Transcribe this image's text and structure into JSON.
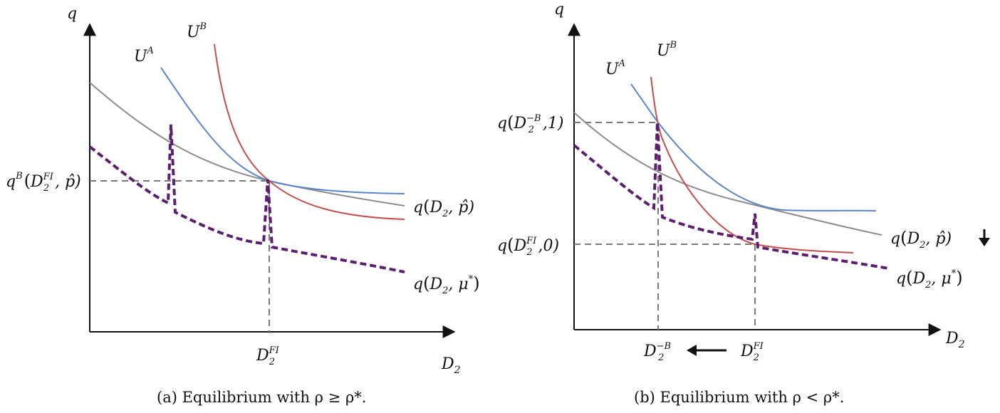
{
  "panel_a": {
    "axis_y": "q",
    "axis_x_main": "D",
    "axis_x_sub": "2",
    "ua_main": "U",
    "ua_sup": "A",
    "ub_main": "U",
    "ub_sup": "B",
    "ylabel_q_main": "q",
    "ylabel_q_sup": "B",
    "ylabel_open": "(",
    "ylabel_d": "D",
    "ylabel_d_sub": "2",
    "ylabel_d_sup": "FI",
    "ylabel_rest": ", p̂)",
    "curve1_q": "q",
    "curve1_open": "(",
    "curve1_d": "D",
    "curve1_sub": "2",
    "curve1_rest": ", p̂)",
    "curve2_q": "q",
    "curve2_open": "(",
    "curve2_d": "D",
    "curve2_sub": "2",
    "curve2_rest": ", μ",
    "curve2_sup": "*",
    "curve2_close": ")",
    "xtick_d": "D",
    "xtick_sub": "2",
    "xtick_sup": "FI",
    "caption": "(a) Equilibrium with ρ ≥ ρ*."
  },
  "panel_b": {
    "axis_y": "q",
    "axis_x_main": "D",
    "axis_x_sub": "2",
    "ua_main": "U",
    "ua_sup": "A",
    "ub_main": "U",
    "ub_sup": "B",
    "ytop_q": "q",
    "ytop_open": "(",
    "ytop_d": "D",
    "ytop_sub": "2",
    "ytop_sup": "−B",
    "ytop_rest": ",1)",
    "ybot_q": "q",
    "ybot_open": "(",
    "ybot_d": "D",
    "ybot_sub": "2",
    "ybot_sup": "FI",
    "ybot_rest": ",0)",
    "curve1_q": "q",
    "curve1_open": "(",
    "curve1_d": "D",
    "curve1_sub": "2",
    "curve1_rest": ", p̂)",
    "curve2_q": "q",
    "curve2_open": "(",
    "curve2_d": "D",
    "curve2_sub": "2",
    "curve2_rest": ", μ",
    "curve2_sup": "*",
    "curve2_close": ")",
    "xtick1_d": "D",
    "xtick1_sub": "2",
    "xtick1_sup": "−B",
    "xtick2_d": "D",
    "xtick2_sub": "2",
    "xtick2_sup": "FI",
    "caption": "(b) Equilibrium with ρ < ρ*."
  },
  "colors": {
    "utility_a": "#5a86c4",
    "utility_b": "#c0504d",
    "q_p_hat": "#8c8c8c",
    "q_mu_star": "#5b1f6e",
    "guide": "#7a7a7a"
  }
}
